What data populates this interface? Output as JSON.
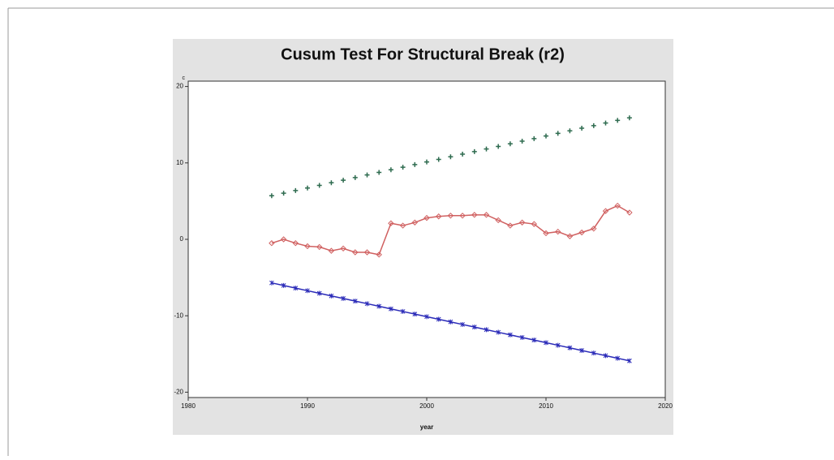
{
  "chart_data": {
    "type": "line",
    "title": "Cusum Test For Structural Break (r2)",
    "x_label": "year",
    "y_label": "c",
    "x": [
      1987,
      1988,
      1989,
      1990,
      1991,
      1992,
      1993,
      1994,
      1995,
      1996,
      1997,
      1998,
      1999,
      2000,
      2001,
      2002,
      2003,
      2004,
      2005,
      2006,
      2007,
      2008,
      2009,
      2010,
      2011,
      2012,
      2013,
      2014,
      2015,
      2016,
      2017
    ],
    "series": [
      {
        "color": "#2e6b4f",
        "marker": "plus",
        "line": false,
        "values": [
          5.7,
          6.04,
          6.38,
          6.72,
          7.06,
          7.4,
          7.74,
          8.08,
          8.42,
          8.76,
          9.1,
          9.44,
          9.78,
          10.12,
          10.46,
          10.8,
          11.14,
          11.48,
          11.82,
          12.16,
          12.5,
          12.84,
          13.18,
          13.52,
          13.86,
          14.2,
          14.54,
          14.88,
          15.22,
          15.56,
          15.9
        ]
      },
      {
        "color": "#d06060",
        "marker": "diamond",
        "line": true,
        "values": [
          -0.5,
          0.0,
          -0.5,
          -0.9,
          -1.0,
          -1.5,
          -1.2,
          -1.7,
          -1.7,
          -2.0,
          2.1,
          1.8,
          2.2,
          2.8,
          3.0,
          3.1,
          3.1,
          3.2,
          3.2,
          2.5,
          1.8,
          2.2,
          2.0,
          0.8,
          1.0,
          0.4,
          0.9,
          1.4,
          3.7,
          4.4,
          3.5
        ]
      },
      {
        "color": "#2b2bb8",
        "marker": "star",
        "line": true,
        "values": [
          -5.7,
          -6.04,
          -6.38,
          -6.72,
          -7.06,
          -7.4,
          -7.74,
          -8.08,
          -8.42,
          -8.76,
          -9.1,
          -9.44,
          -9.78,
          -10.12,
          -10.46,
          -10.8,
          -11.14,
          -11.48,
          -11.82,
          -12.16,
          -12.5,
          -12.84,
          -13.18,
          -13.52,
          -13.86,
          -14.2,
          -14.54,
          -14.88,
          -15.22,
          -15.56,
          -15.9
        ]
      }
    ],
    "xlim": [
      1980,
      2020
    ],
    "xticks": [
      1980,
      1990,
      2000,
      2010,
      2020
    ],
    "ylim": [
      -20.7,
      20.7
    ],
    "yticks": [
      -20,
      -10,
      0,
      10,
      20
    ],
    "grid": false
  }
}
